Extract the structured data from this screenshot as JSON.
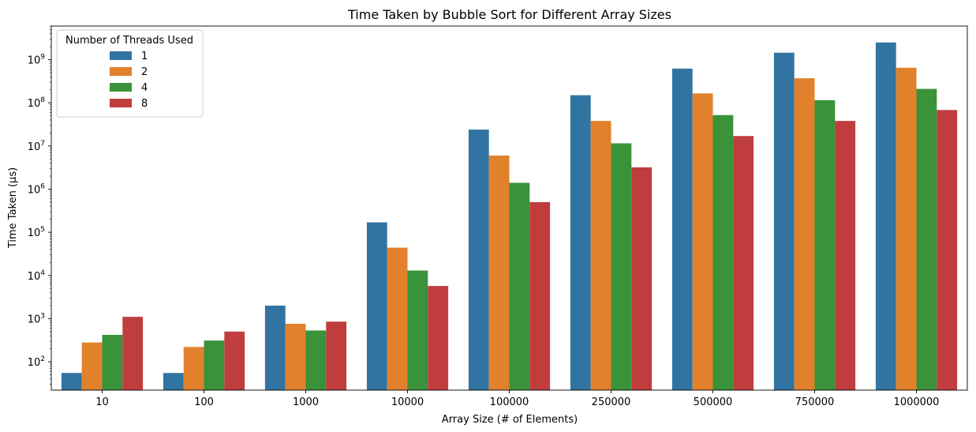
{
  "chart_data": {
    "type": "bar",
    "title": "Time Taken by Bubble Sort for Different Array Sizes",
    "xlabel": "Array Size (# of Elements)",
    "ylabel": "Time Taken (μs)",
    "yscale": "log",
    "ylim": [
      22,
      6000000000
    ],
    "y_ticks": [
      {
        "base": "10",
        "exp": "2",
        "value": 100
      },
      {
        "base": "10",
        "exp": "3",
        "value": 1000
      },
      {
        "base": "10",
        "exp": "4",
        "value": 10000
      },
      {
        "base": "10",
        "exp": "5",
        "value": 100000
      },
      {
        "base": "10",
        "exp": "6",
        "value": 1000000
      },
      {
        "base": "10",
        "exp": "7",
        "value": 10000000
      },
      {
        "base": "10",
        "exp": "8",
        "value": 100000000
      },
      {
        "base": "10",
        "exp": "9",
        "value": 1000000000
      }
    ],
    "categories": [
      "10",
      "100",
      "1000",
      "10000",
      "100000",
      "250000",
      "500000",
      "750000",
      "1000000"
    ],
    "legend": {
      "title": "Number of Threads Used",
      "placement": "top-left"
    },
    "series": [
      {
        "name": "1",
        "color": "#3274a1",
        "values": [
          55,
          55,
          2000,
          170000,
          24000000,
          150000000,
          620000000,
          1450000000,
          2500000000
        ]
      },
      {
        "name": "2",
        "color": "#e1812c",
        "values": [
          280,
          220,
          760,
          44000,
          6000000,
          38000000,
          165000000,
          370000000,
          650000000
        ]
      },
      {
        "name": "4",
        "color": "#3a923a",
        "values": [
          420,
          310,
          530,
          13000,
          1400000,
          11500000,
          52000000,
          115000000,
          210000000
        ]
      },
      {
        "name": "8",
        "color": "#c03d3e",
        "values": [
          1100,
          500,
          850,
          5700,
          500000,
          3200000,
          17000000,
          38000000,
          68000000
        ]
      }
    ]
  }
}
